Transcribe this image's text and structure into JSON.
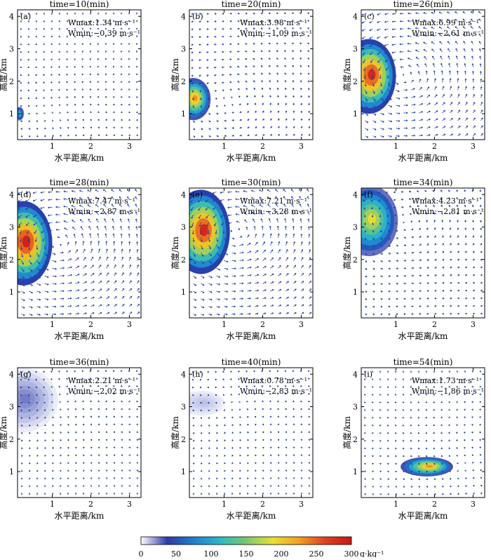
{
  "figure": {
    "xlabel": "水平距离/km",
    "ylabel": "高度/km",
    "x_ticks": [
      "1",
      "2",
      "3"
    ],
    "y_ticks": [
      "1",
      "2",
      "3",
      "4"
    ],
    "colorbar": {
      "ticks": [
        "0",
        "50",
        "100",
        "150",
        "200",
        "250",
        "300"
      ],
      "unit": "g·kg⁻¹",
      "stops": [
        "#ffffff",
        "#2b3aa8",
        "#1f7fd0",
        "#2ab8c8",
        "#7ac870",
        "#e8e030",
        "#f5a020",
        "#e04020",
        "#c81818"
      ]
    },
    "vector_color": "#1f3fb0"
  },
  "chart_data": [
    {
      "type": "heatmap",
      "panel": "(a)",
      "title": "time=10(min)",
      "xlabel": "水平距离/km",
      "ylabel": "高度/km",
      "xlim": [
        0.1,
        3.3
      ],
      "ylim": [
        0.2,
        4.2
      ],
      "wmax": "Wmax:1.34 m·s⁻¹",
      "wmin": "Wmin:−0.39 m·s⁻¹",
      "cell": {
        "cx": 0.15,
        "cy": 1.0,
        "rx": 0.12,
        "ry": 0.22,
        "peak": 120
      }
    },
    {
      "type": "heatmap",
      "panel": "(b)",
      "title": "time=20(min)",
      "xlabel": "水平距离/km",
      "ylabel": "高度/km",
      "xlim": [
        0.1,
        3.3
      ],
      "ylim": [
        0.2,
        4.2
      ],
      "wmax": "Wmax:3.98 m·s⁻¹",
      "wmin": "Wmin:−1.09 m·s⁻¹",
      "cell": {
        "cx": 0.2,
        "cy": 1.45,
        "rx": 0.45,
        "ry": 0.65,
        "peak": 230
      }
    },
    {
      "type": "heatmap",
      "panel": "(c)",
      "title": "time=26(min)",
      "xlabel": "水平距离/km",
      "ylabel": "高度/km",
      "xlim": [
        0.1,
        3.3
      ],
      "ylim": [
        0.2,
        4.2
      ],
      "wmax": "Wmax:6.99 m·s⁻¹",
      "wmin": "Wmin:−2.61 m·s⁻¹",
      "cell": {
        "cx": 0.3,
        "cy": 2.15,
        "rx": 0.7,
        "ry": 1.15,
        "peak": 285
      }
    },
    {
      "type": "heatmap",
      "panel": "(d)",
      "title": "time=28(min)",
      "xlabel": "水平距离/km",
      "ylabel": "高度/km",
      "xlim": [
        0.1,
        3.3
      ],
      "ylim": [
        0.2,
        4.2
      ],
      "wmax": "Wmax:7.47 m·s⁻¹",
      "wmin": "Wmin:−2.87 m·s⁻¹",
      "cell": {
        "cx": 0.25,
        "cy": 2.5,
        "rx": 0.75,
        "ry": 1.3,
        "peak": 290
      }
    },
    {
      "type": "heatmap",
      "panel": "(e)",
      "title": "time=30(min)",
      "xlabel": "水平距离/km",
      "ylabel": "高度/km",
      "xlim": [
        0.1,
        3.3
      ],
      "ylim": [
        0.2,
        4.2
      ],
      "wmax": "Wmax:7.21 m·s⁻¹",
      "wmin": "Wmin:−3.28 m·s⁻¹",
      "cell": {
        "cx": 0.4,
        "cy": 2.85,
        "rx": 0.75,
        "ry": 1.3,
        "peak": 285
      }
    },
    {
      "type": "heatmap",
      "panel": "(f)",
      "title": "time=34(min)",
      "xlabel": "水平距离/km",
      "ylabel": "高度/km",
      "xlim": [
        0.1,
        3.3
      ],
      "ylim": [
        0.2,
        4.2
      ],
      "wmax": "Wmax:4.23 m·s⁻¹",
      "wmin": "Wmin:−2.81 m·s⁻¹",
      "cell": {
        "cx": 0.3,
        "cy": 3.2,
        "rx": 0.75,
        "ry": 1.1,
        "peak": 190
      }
    },
    {
      "type": "heatmap",
      "panel": "(g)",
      "title": "time=36(min)",
      "xlabel": "水平距离/km",
      "ylabel": "高度/km",
      "xlim": [
        0.1,
        3.3
      ],
      "ylim": [
        0.2,
        4.2
      ],
      "wmax": "Wmax:2.21 m·s⁻¹",
      "wmin": "Wmin:−2.02 m·s⁻¹",
      "cell": {
        "cx": 0.2,
        "cy": 3.2,
        "rx": 0.95,
        "ry": 1.0,
        "peak": 25
      }
    },
    {
      "type": "heatmap",
      "panel": "(h)",
      "title": "time=40(min)",
      "xlabel": "水平距离/km",
      "ylabel": "高度/km",
      "xlim": [
        0.1,
        3.3
      ],
      "ylim": [
        0.2,
        4.2
      ],
      "wmax": "Wmax:0.78 m·s⁻¹",
      "wmin": "Wmin:−2.83 m·s⁻¹",
      "cell": {
        "cx": 0.4,
        "cy": 3.1,
        "rx": 0.7,
        "ry": 0.45,
        "peak": 12
      }
    },
    {
      "type": "heatmap",
      "panel": "(i)",
      "title": "time=54(min)",
      "xlabel": "水平距离/km",
      "ylabel": "高度/km",
      "xlim": [
        0.1,
        3.3
      ],
      "ylim": [
        0.2,
        4.2
      ],
      "wmax": "Wmax:1.73 m·s⁻¹",
      "wmin": "Wmin:−1.86 m·s⁻¹",
      "cell": {
        "cx": 1.8,
        "cy": 1.15,
        "rx": 0.68,
        "ry": 0.3,
        "peak": 230
      }
    }
  ]
}
